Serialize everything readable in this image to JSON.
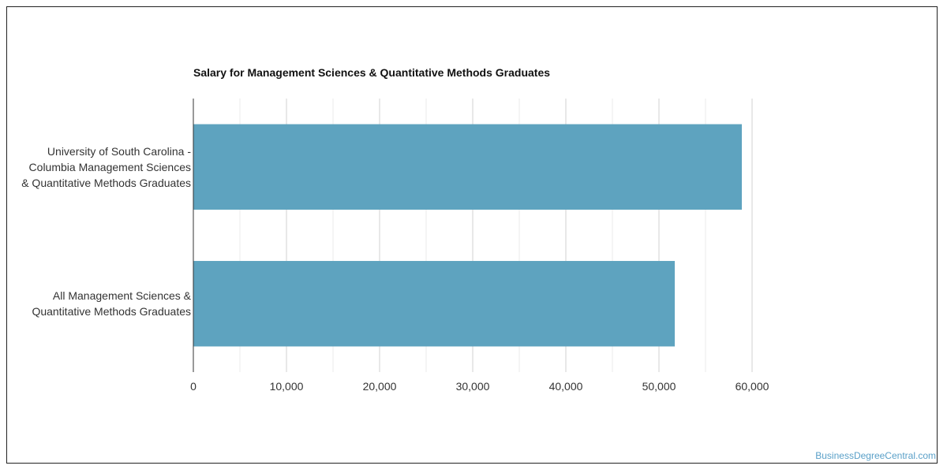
{
  "chart_data": {
    "type": "bar",
    "orientation": "horizontal",
    "title": "Salary for Management Sciences & Quantitative Methods Graduates",
    "xlabel": "",
    "ylabel": "",
    "categories": [
      "University of South Carolina - Columbia Management Sciences & Quantitative Methods Graduates",
      "All Management Sciences & Quantitative Methods Graduates"
    ],
    "category_lines": [
      [
        "University of South Carolina -",
        "Columbia Management Sciences",
        "& Quantitative Methods Graduates"
      ],
      [
        "All Management Sciences &",
        "Quantitative Methods Graduates"
      ]
    ],
    "values": [
      58900,
      51700
    ],
    "xlim": [
      0,
      60000
    ],
    "ticks": [
      0,
      10000,
      20000,
      30000,
      40000,
      50000,
      60000
    ],
    "tick_labels": [
      "0",
      "10,000",
      "20,000",
      "30,000",
      "40,000",
      "50,000",
      "60,000"
    ],
    "grid": true,
    "bar_color": "#5ea3bf"
  },
  "watermark": "BusinessDegreeCentral.com"
}
